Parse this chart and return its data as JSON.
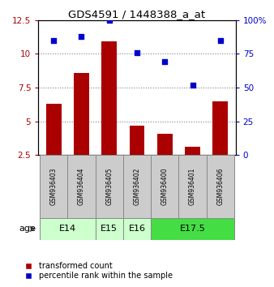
{
  "title": "GDS4591 / 1448388_a_at",
  "samples": [
    "GSM936403",
    "GSM936404",
    "GSM936405",
    "GSM936402",
    "GSM936400",
    "GSM936401",
    "GSM936406"
  ],
  "bar_values": [
    6.3,
    8.6,
    10.9,
    4.65,
    4.1,
    3.1,
    6.5
  ],
  "scatter_values": [
    85,
    88,
    100,
    76,
    69,
    52,
    85
  ],
  "bar_color": "#aa0000",
  "scatter_color": "#0000cc",
  "ylim_left": [
    2.5,
    12.5
  ],
  "ylim_right": [
    0,
    100
  ],
  "yticks_left": [
    2.5,
    5.0,
    7.5,
    10.0,
    12.5
  ],
  "yticks_right": [
    0,
    25,
    50,
    75,
    100
  ],
  "ytick_labels_left": [
    "2.5",
    "5",
    "7.5",
    "10",
    "12.5"
  ],
  "ytick_labels_right": [
    "0",
    "25",
    "50",
    "75",
    "100%"
  ],
  "age_groups": [
    {
      "label": "E14",
      "samples": [
        0,
        1
      ],
      "color": "#ccffcc"
    },
    {
      "label": "E15",
      "samples": [
        2
      ],
      "color": "#ccffcc"
    },
    {
      "label": "E16",
      "samples": [
        3
      ],
      "color": "#ccffcc"
    },
    {
      "label": "E17.5",
      "samples": [
        4,
        5,
        6
      ],
      "color": "#44dd44"
    }
  ],
  "age_label": "age",
  "legend_bar_label": "transformed count",
  "legend_scatter_label": "percentile rank within the sample",
  "bar_width": 0.55,
  "background_color": "#ffffff",
  "sample_box_color": "#cccccc"
}
